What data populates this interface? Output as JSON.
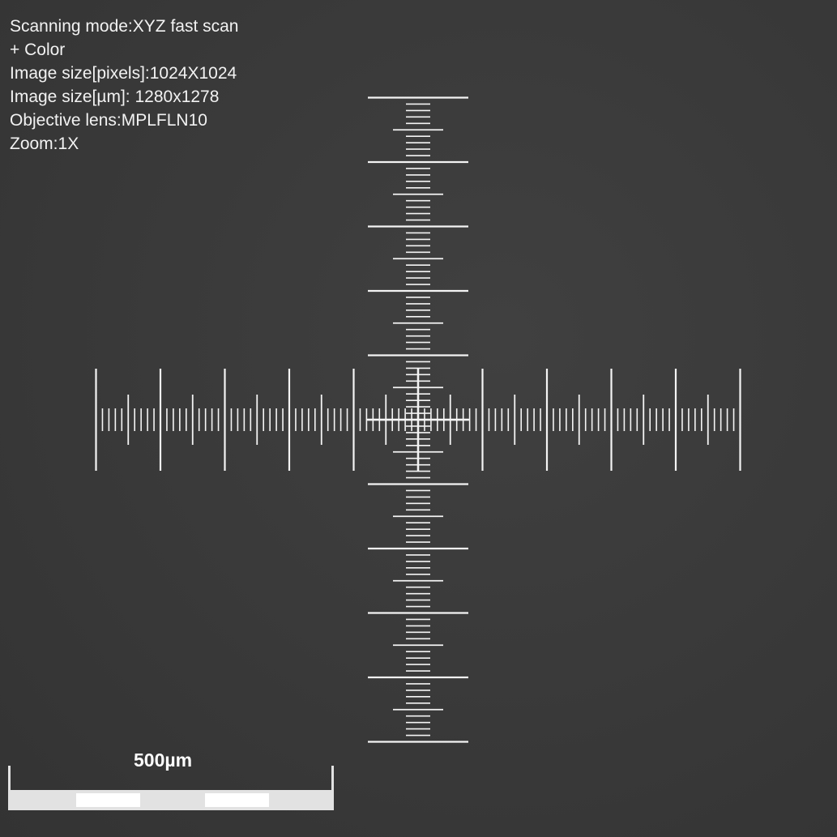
{
  "info": {
    "lines": [
      "Scanning mode:XYZ fast scan",
      "+ Color",
      "Image size[pixels]:1024X1024",
      "Image size[µm]: 1280x1278",
      "Objective lens:MPLFLN10",
      "Zoom:1X"
    ]
  },
  "scale_bar": {
    "label": "500µm"
  },
  "colors": {
    "background": "#3a3a3a",
    "reticle": "#f4f4f4",
    "scale_bar": "#e4e4e4",
    "text": "#f2f2f2"
  }
}
